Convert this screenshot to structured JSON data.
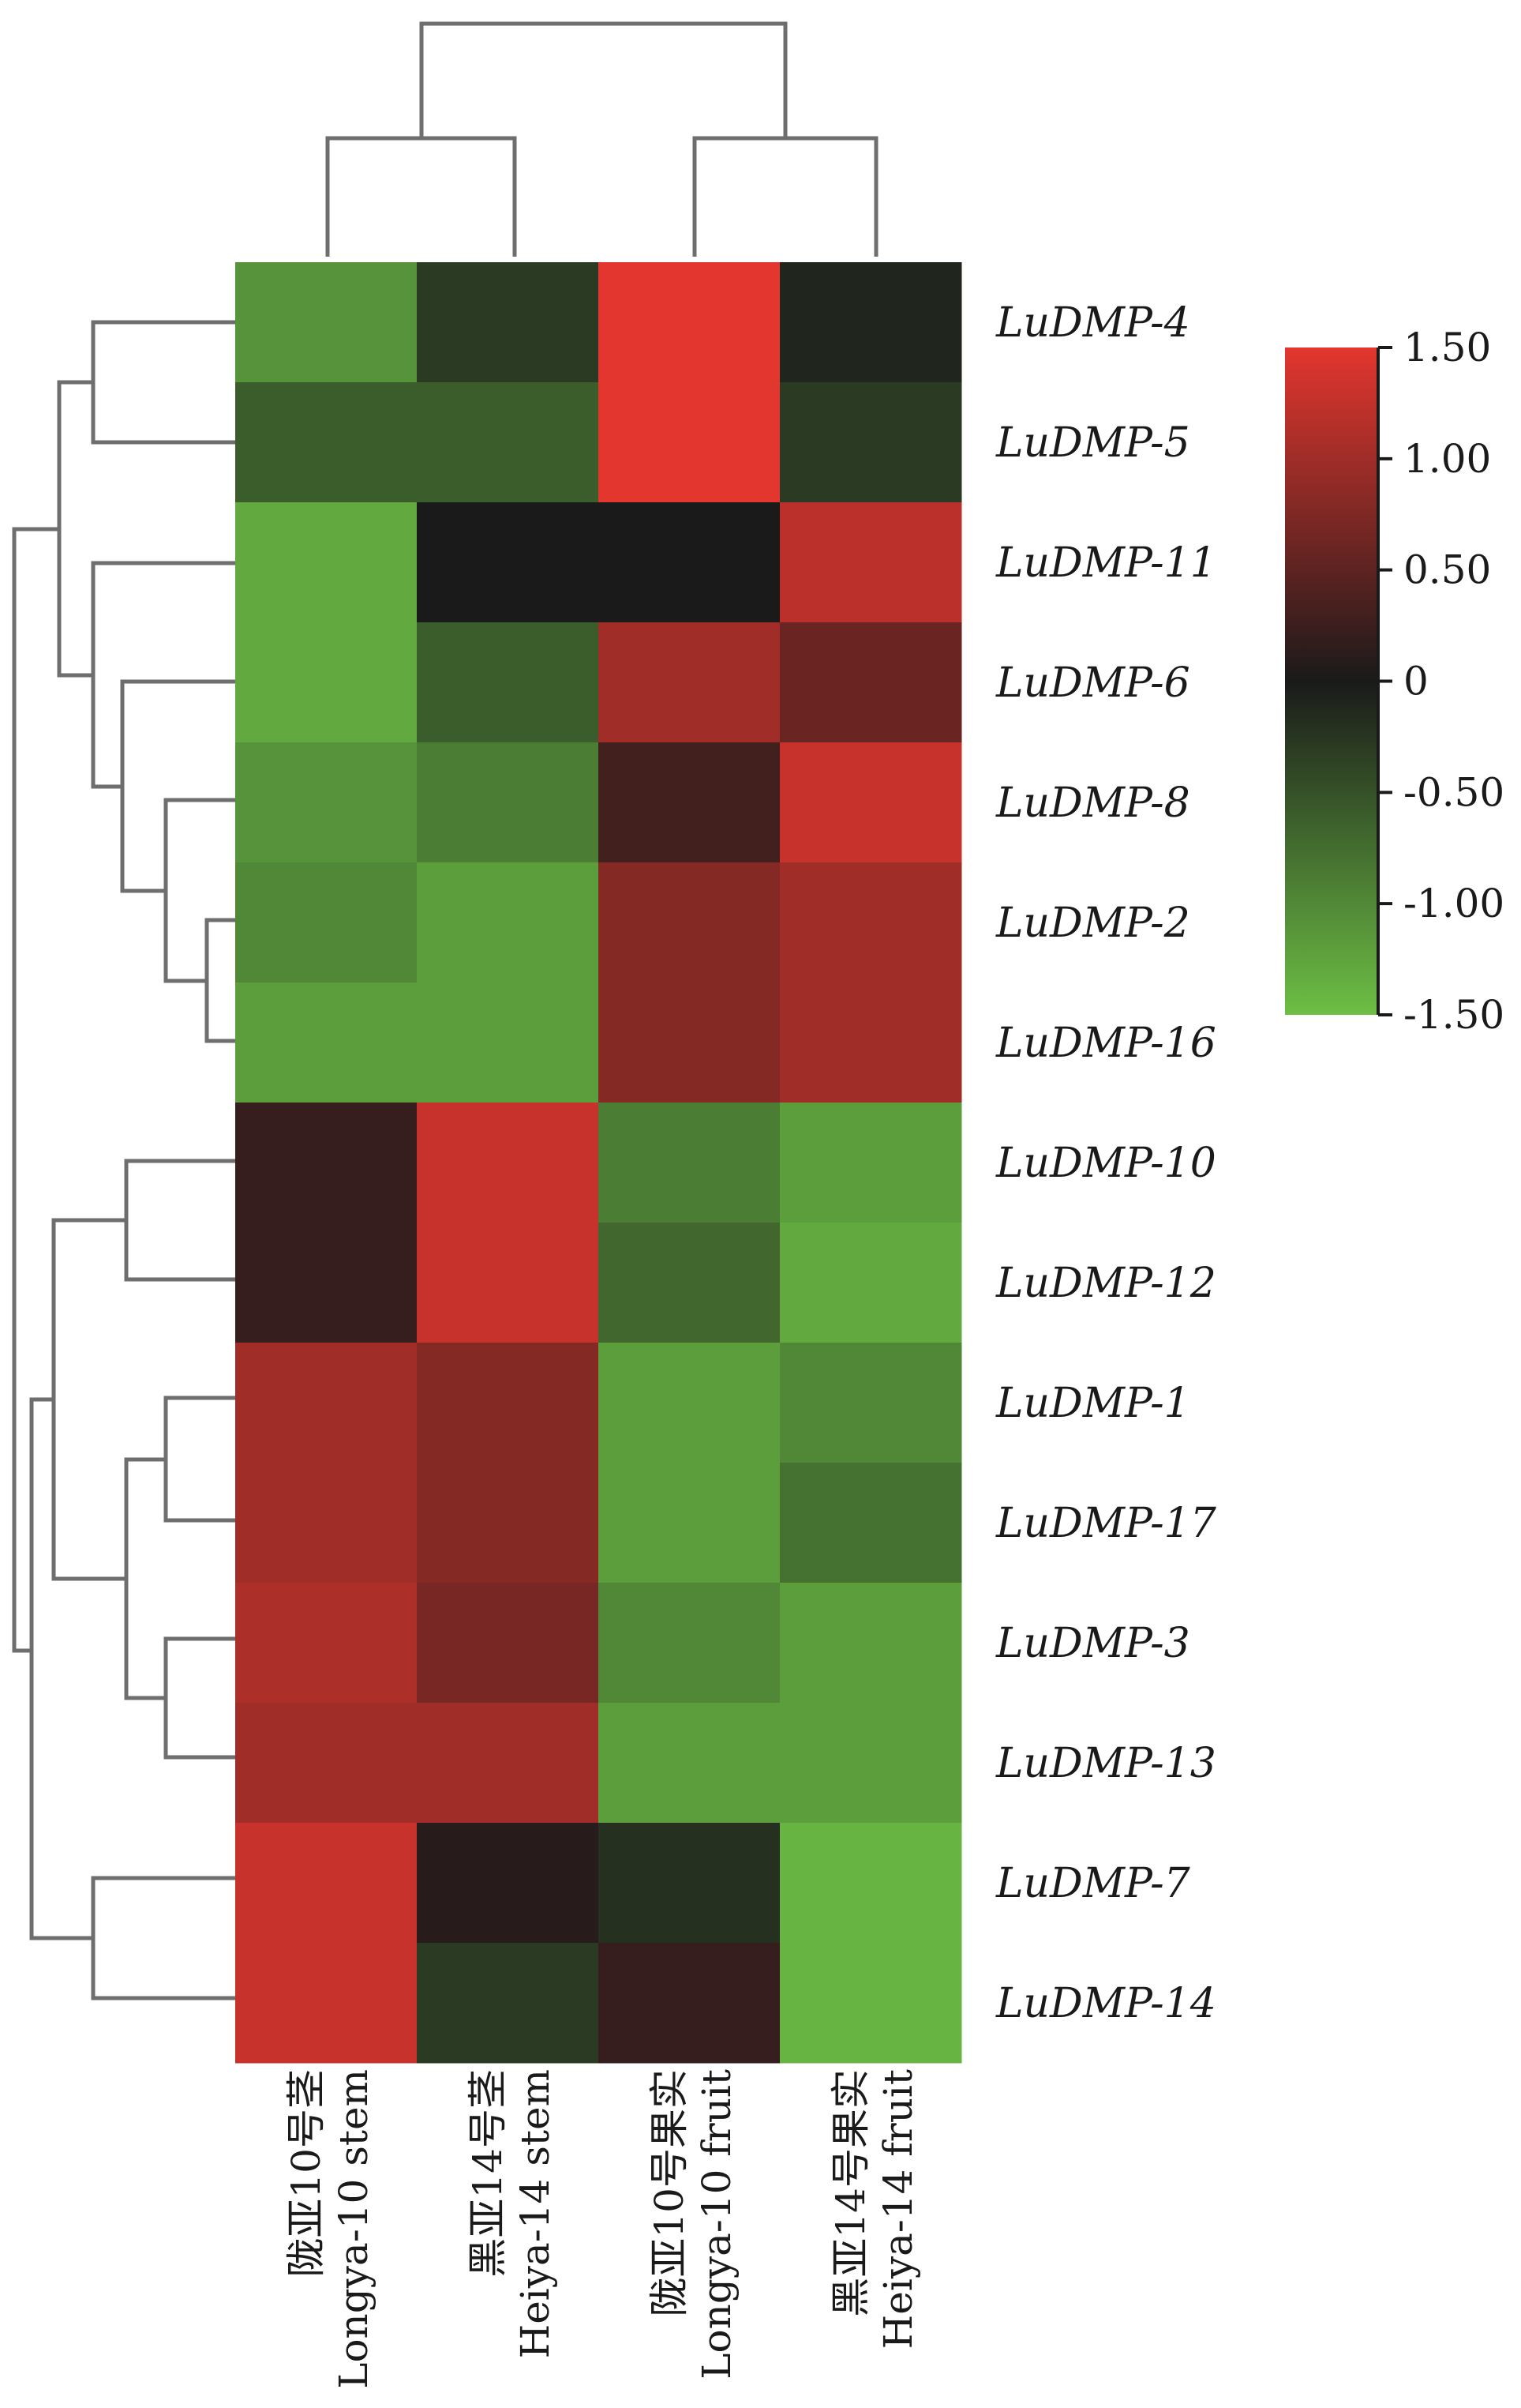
{
  "chart_data": {
    "type": "heatmap",
    "columns": [
      {
        "cn": "陇亚10号茎",
        "en": "Longya-10 stem"
      },
      {
        "cn": "黑亚14号茎",
        "en": "Heiya-14 stem"
      },
      {
        "cn": "陇亚10号果实",
        "en": "Longya-10 fruit"
      },
      {
        "cn": "黑亚14号果实",
        "en": "Heiya-14 fruit"
      }
    ],
    "rows": [
      "LuDMP-4",
      "LuDMP-5",
      "LuDMP-11",
      "LuDMP-6",
      "LuDMP-8",
      "LuDMP-2",
      "LuDMP-16",
      "LuDMP-10",
      "LuDMP-12",
      "LuDMP-1",
      "LuDMP-17",
      "LuDMP-3",
      "LuDMP-13",
      "LuDMP-7",
      "LuDMP-14"
    ],
    "values": [
      [
        -1.1,
        -0.3,
        1.5,
        -0.1
      ],
      [
        -0.6,
        -0.6,
        1.5,
        -0.3
      ],
      [
        -1.3,
        0.0,
        0.0,
        1.2
      ],
      [
        -1.3,
        -0.6,
        1.0,
        0.6
      ],
      [
        -1.1,
        -0.9,
        0.3,
        1.3
      ],
      [
        -1.0,
        -1.2,
        0.8,
        1.0
      ],
      [
        -1.2,
        -1.2,
        0.8,
        1.0
      ],
      [
        0.2,
        1.3,
        -0.9,
        -1.2
      ],
      [
        0.2,
        1.3,
        -0.7,
        -1.3
      ],
      [
        1.0,
        0.8,
        -1.2,
        -1.0
      ],
      [
        1.0,
        0.8,
        -1.2,
        -0.8
      ],
      [
        1.1,
        0.7,
        -1.0,
        -1.2
      ],
      [
        1.0,
        1.0,
        -1.2,
        -1.2
      ],
      [
        1.3,
        0.1,
        -0.2,
        -1.4
      ],
      [
        1.3,
        -0.3,
        0.2,
        -1.4
      ]
    ],
    "colorbar": {
      "ticks": [
        "1.50",
        "1.00",
        "0.50",
        "0",
        "-0.50",
        "-1.00",
        "-1.50"
      ],
      "range": [
        -1.5,
        1.5
      ],
      "colors": {
        "low": "#6dbf45",
        "mid": "#1a1a1a",
        "high": "#e3362f"
      }
    }
  }
}
